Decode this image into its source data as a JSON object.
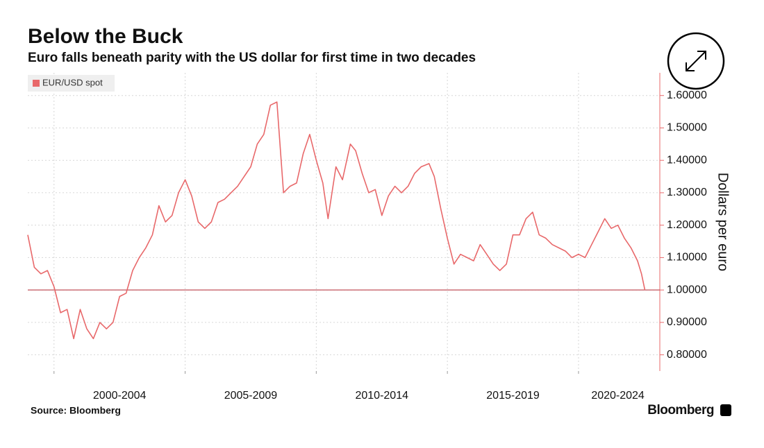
{
  "chart_data": {
    "type": "line",
    "title": "Below the Buck",
    "subtitle": "Euro falls beneath parity with the US dollar for first time in two decades",
    "y_axis_label": "Dollars per euro",
    "source": "Source: Bloomberg",
    "brand": "Bloomberg",
    "x": [
      1999.0,
      1999.25,
      1999.5,
      1999.75,
      2000.0,
      2000.25,
      2000.5,
      2000.75,
      2001.0,
      2001.25,
      2001.5,
      2001.75,
      2002.0,
      2002.25,
      2002.5,
      2002.75,
      2003.0,
      2003.25,
      2003.5,
      2003.75,
      2004.0,
      2004.25,
      2004.5,
      2004.75,
      2005.0,
      2005.25,
      2005.5,
      2005.75,
      2006.0,
      2006.25,
      2006.5,
      2006.75,
      2007.0,
      2007.25,
      2007.5,
      2007.75,
      2008.0,
      2008.25,
      2008.5,
      2008.75,
      2009.0,
      2009.25,
      2009.5,
      2009.75,
      2010.0,
      2010.25,
      2010.45,
      2010.75,
      2011.0,
      2011.3,
      2011.5,
      2011.75,
      2012.0,
      2012.25,
      2012.5,
      2012.75,
      2013.0,
      2013.25,
      2013.5,
      2013.75,
      2014.0,
      2014.3,
      2014.5,
      2014.75,
      2015.0,
      2015.25,
      2015.5,
      2015.75,
      2016.0,
      2016.25,
      2016.5,
      2016.75,
      2017.0,
      2017.25,
      2017.5,
      2017.75,
      2018.0,
      2018.25,
      2018.5,
      2018.75,
      2019.0,
      2019.25,
      2019.5,
      2019.75,
      2020.0,
      2020.25,
      2020.5,
      2020.75,
      2021.0,
      2021.25,
      2021.5,
      2021.75,
      2022.0,
      2022.25,
      2022.4,
      2022.53
    ],
    "series": [
      {
        "name": "EUR/USD spot",
        "color": "#e8686a",
        "values": [
          1.17,
          1.07,
          1.05,
          1.06,
          1.01,
          0.93,
          0.94,
          0.85,
          0.94,
          0.88,
          0.85,
          0.9,
          0.88,
          0.9,
          0.98,
          0.99,
          1.06,
          1.1,
          1.13,
          1.17,
          1.26,
          1.21,
          1.23,
          1.3,
          1.34,
          1.29,
          1.21,
          1.19,
          1.21,
          1.27,
          1.28,
          1.3,
          1.32,
          1.35,
          1.38,
          1.45,
          1.48,
          1.57,
          1.58,
          1.3,
          1.32,
          1.33,
          1.42,
          1.48,
          1.4,
          1.33,
          1.22,
          1.38,
          1.34,
          1.45,
          1.43,
          1.36,
          1.3,
          1.31,
          1.23,
          1.29,
          1.32,
          1.3,
          1.32,
          1.36,
          1.38,
          1.39,
          1.35,
          1.25,
          1.16,
          1.08,
          1.11,
          1.1,
          1.09,
          1.14,
          1.11,
          1.08,
          1.06,
          1.08,
          1.17,
          1.17,
          1.22,
          1.24,
          1.17,
          1.16,
          1.14,
          1.13,
          1.12,
          1.1,
          1.11,
          1.1,
          1.14,
          1.18,
          1.22,
          1.19,
          1.2,
          1.16,
          1.13,
          1.09,
          1.05,
          1.0
        ]
      }
    ],
    "xlim": [
      1999,
      2023.1
    ],
    "xgrid": [
      2000,
      2005,
      2010,
      2015,
      2020
    ],
    "xticks": [
      {
        "value": 2002.5,
        "label": "2000-2004"
      },
      {
        "value": 2007.5,
        "label": "2005-2009"
      },
      {
        "value": 2012.5,
        "label": "2010-2014"
      },
      {
        "value": 2017.5,
        "label": "2015-2019"
      },
      {
        "value": 2021.5,
        "label": "2020-2024"
      }
    ],
    "ylim": [
      0.75,
      1.67
    ],
    "yticks": [
      {
        "value": 0.8,
        "label": "0.80000"
      },
      {
        "value": 0.9,
        "label": "0.90000"
      },
      {
        "value": 1.0,
        "label": "1.00000"
      },
      {
        "value": 1.1,
        "label": "1.10000"
      },
      {
        "value": 1.2,
        "label": "1.20000"
      },
      {
        "value": 1.3,
        "label": "1.30000"
      },
      {
        "value": 1.4,
        "label": "1.40000"
      },
      {
        "value": 1.5,
        "label": "1.50000"
      },
      {
        "value": 1.6,
        "label": "1.60000"
      }
    ],
    "reference_line": 1.0,
    "grid": true,
    "legend": "top-left"
  }
}
